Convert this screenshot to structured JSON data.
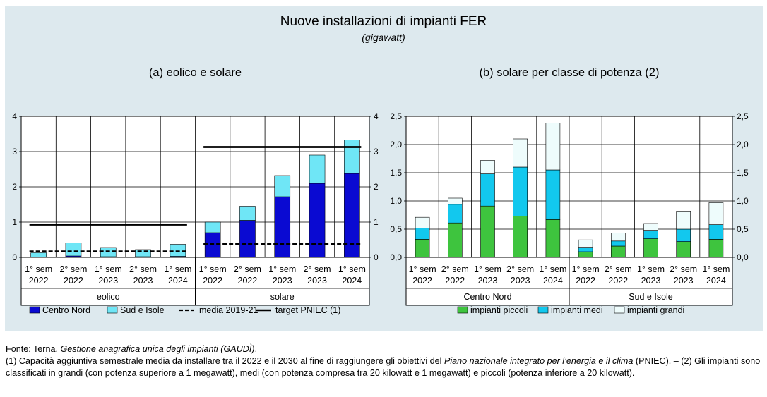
{
  "title": "Nuove installazioni di impianti FER",
  "subtitle": "(gigawatt)",
  "colors": {
    "panel_bg": "#dde9ee",
    "centro_nord": "#0a0ad2",
    "sud_isole": "#6fe6f6",
    "piccoli": "#3ec43e",
    "medi": "#12c8ee",
    "grandi": "#eefcfc"
  },
  "chart_data": [
    {
      "type": "bar",
      "stacked": true,
      "title": "(a) eolico e solare",
      "ylim": [
        0,
        4
      ],
      "yticks_left": [
        "0",
        "1",
        "2",
        "3",
        "4"
      ],
      "yticks_right": [
        "0",
        "1",
        "2",
        "3",
        "4"
      ],
      "categories": [
        "1° sem\n2022",
        "2° sem\n2022",
        "1° sem\n2023",
        "2° sem\n2023",
        "1° sem\n2024"
      ],
      "groups": [
        {
          "name": "eolico",
          "series": [
            {
              "name": "Centro Nord",
              "values": [
                0.0,
                0.04,
                0.02,
                0.02,
                0.03
              ]
            },
            {
              "name": "Sud e Isole",
              "values": [
                0.13,
                0.37,
                0.26,
                0.2,
                0.34
              ]
            }
          ],
          "media_2019_21": 0.17,
          "target_pniec": 0.93
        },
        {
          "name": "solare",
          "series": [
            {
              "name": "Centro Nord",
              "values": [
                0.7,
                1.05,
                1.72,
                2.1,
                2.38
              ]
            },
            {
              "name": "Sud e Isole",
              "values": [
                0.3,
                0.4,
                0.6,
                0.8,
                0.95
              ]
            }
          ],
          "media_2019_21": 0.38,
          "target_pniec": 3.13
        }
      ],
      "legend": [
        {
          "name": "Centro Nord",
          "kind": "box",
          "color": "#0a0ad2"
        },
        {
          "name": "Sud e Isole",
          "kind": "box",
          "color": "#6fe6f6"
        },
        {
          "name": "media 2019-21",
          "kind": "dashed"
        },
        {
          "name": "target PNIEC (1)",
          "kind": "line"
        }
      ]
    },
    {
      "type": "bar",
      "stacked": true,
      "title": "(b) solare per classe di potenza (2)",
      "ylim": [
        0,
        2.5
      ],
      "yticks_left": [
        "0,0",
        "0,5",
        "1,0",
        "1,5",
        "2,0",
        "2,5"
      ],
      "yticks_right": [
        "0,0",
        "0,5",
        "1,0",
        "1,5",
        "2,0",
        "2,5"
      ],
      "categories": [
        "1° sem\n2022",
        "2° sem\n2022",
        "1° sem\n2023",
        "2° sem\n2023",
        "1° sem\n2024"
      ],
      "groups": [
        {
          "name": "Centro Nord",
          "series": [
            {
              "name": "impianti piccoli",
              "values": [
                0.32,
                0.61,
                0.91,
                0.73,
                0.67
              ]
            },
            {
              "name": "impianti medi",
              "values": [
                0.2,
                0.33,
                0.57,
                0.87,
                0.88
              ]
            },
            {
              "name": "impianti grandi",
              "values": [
                0.19,
                0.11,
                0.24,
                0.5,
                0.83
              ]
            }
          ]
        },
        {
          "name": "Sud e Isole",
          "series": [
            {
              "name": "impianti piccoli",
              "values": [
                0.1,
                0.2,
                0.33,
                0.28,
                0.32
              ]
            },
            {
              "name": "impianti medi",
              "values": [
                0.08,
                0.09,
                0.15,
                0.22,
                0.26
              ]
            },
            {
              "name": "impianti grandi",
              "values": [
                0.13,
                0.14,
                0.12,
                0.32,
                0.39
              ]
            }
          ]
        }
      ],
      "legend": [
        {
          "name": "impianti piccoli",
          "kind": "box",
          "color": "#3ec43e"
        },
        {
          "name": "impianti medi",
          "kind": "box",
          "color": "#12c8ee"
        },
        {
          "name": "impianti grandi",
          "kind": "box",
          "color": "#eefcfc"
        }
      ]
    }
  ],
  "notes": {
    "fonte_prefix": "Fonte: Terna, ",
    "fonte_italic": "Gestione anagrafica unica degli impianti (GAUDÌ)",
    "fonte_suffix": ".",
    "note1_a": "(1) Capacità aggiuntiva semestrale media da installare tra il 2022 e il 2030 al fine di raggiungere gli obiettivi del ",
    "note1_italic": "Piano nazionale integrato per l’energia e il clima",
    "note1_b": " (PNIEC). – (2) Gli impianti sono classificati in grandi (con potenza superiore a 1 megawatt), medi (con potenza compresa tra 20 kilowatt e 1 megawatt) e piccoli (potenza inferiore a 20 kilowatt)."
  }
}
